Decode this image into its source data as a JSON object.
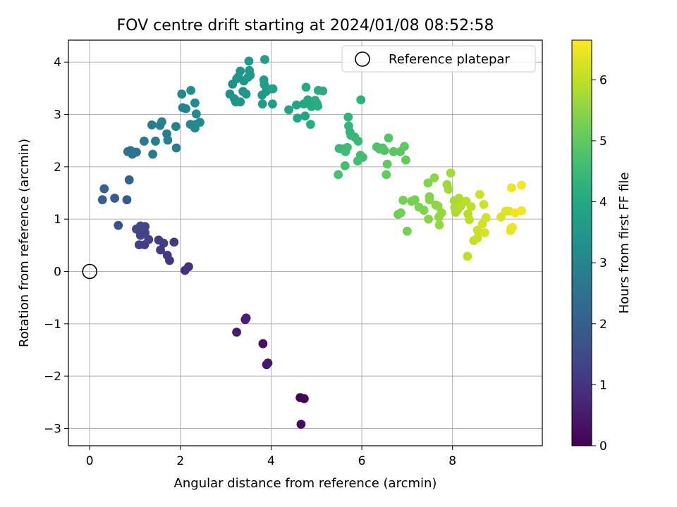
{
  "chart_data": {
    "type": "scatter",
    "title": "FOV centre drift starting at 2024/01/08 08:52:58",
    "xlabel": "Angular distance from reference (arcmin)",
    "ylabel": "Rotation from reference (arcmin)",
    "xlim": [
      -0.47,
      9.98
    ],
    "ylim": [
      -3.33,
      4.42
    ],
    "x_ticks": [
      0,
      2,
      4,
      6,
      8
    ],
    "y_ticks": [
      -3,
      -2,
      -1,
      0,
      1,
      2,
      3,
      4
    ],
    "x_tick_labels": [
      "0",
      "2",
      "4",
      "6",
      "8"
    ],
    "y_tick_labels": [
      "−3",
      "−2",
      "−1",
      "0",
      "1",
      "2",
      "3",
      "4"
    ],
    "grid": true,
    "legend": {
      "placement": "upper-right",
      "label": "Reference platepar"
    },
    "reference_point": {
      "x": 0,
      "y": 0
    },
    "colorbar": {
      "label": "Hours from first FF file",
      "range": [
        0,
        6.65
      ],
      "ticks": [
        0,
        1,
        2,
        3,
        4,
        5,
        6
      ],
      "tick_labels": [
        "0",
        "1",
        "2",
        "3",
        "4",
        "5",
        "6"
      ],
      "colormap": "viridis"
    },
    "points": [
      [
        4.64,
        -2.41,
        0.05
      ],
      [
        4.73,
        -2.43,
        0.1
      ],
      [
        4.66,
        -2.92,
        0.15
      ],
      [
        3.82,
        -1.38,
        0.3
      ],
      [
        3.9,
        -1.78,
        0.4
      ],
      [
        3.93,
        -1.75,
        0.45
      ],
      [
        3.24,
        -1.16,
        0.5
      ],
      [
        3.43,
        -0.92,
        0.55
      ],
      [
        3.45,
        -0.89,
        0.6
      ],
      [
        2.1,
        0.02,
        0.9
      ],
      [
        2.18,
        0.09,
        0.95
      ],
      [
        1.76,
        0.21,
        1.05
      ],
      [
        1.71,
        0.31,
        1.1
      ],
      [
        1.56,
        0.41,
        1.15
      ],
      [
        1.86,
        0.56,
        1.15
      ],
      [
        1.63,
        0.54,
        1.2
      ],
      [
        1.52,
        0.6,
        1.2
      ],
      [
        1.21,
        0.51,
        1.25
      ],
      [
        1.09,
        0.51,
        1.25
      ],
      [
        1.3,
        0.61,
        1.3
      ],
      [
        1.12,
        0.69,
        1.3
      ],
      [
        1.22,
        0.74,
        1.35
      ],
      [
        1.13,
        0.81,
        1.35
      ],
      [
        1.03,
        0.81,
        1.4
      ],
      [
        1.22,
        0.86,
        1.4
      ],
      [
        1.12,
        0.87,
        1.45
      ],
      [
        0.63,
        0.88,
        1.7
      ],
      [
        0.82,
        1.37,
        1.9
      ],
      [
        0.55,
        1.4,
        1.95
      ],
      [
        0.28,
        1.37,
        2.0
      ],
      [
        0.32,
        1.58,
        2.05
      ],
      [
        0.87,
        1.75,
        2.1
      ],
      [
        0.84,
        2.29,
        2.5
      ],
      [
        0.9,
        2.31,
        2.55
      ],
      [
        0.94,
        2.24,
        2.55
      ],
      [
        1.03,
        2.28,
        2.6
      ],
      [
        1.2,
        2.49,
        2.65
      ],
      [
        1.39,
        2.24,
        2.7
      ],
      [
        1.45,
        2.49,
        2.75
      ],
      [
        1.91,
        2.36,
        2.75
      ],
      [
        1.72,
        2.51,
        2.8
      ],
      [
        1.7,
        2.63,
        2.8
      ],
      [
        1.37,
        2.8,
        2.85
      ],
      [
        1.55,
        2.79,
        2.85
      ],
      [
        1.59,
        2.86,
        2.9
      ],
      [
        1.9,
        2.77,
        2.9
      ],
      [
        2.05,
        3.13,
        3.0
      ],
      [
        2.12,
        3.11,
        3.0
      ],
      [
        2.03,
        3.39,
        3.05
      ],
      [
        2.22,
        2.81,
        3.05
      ],
      [
        2.32,
        2.74,
        3.1
      ],
      [
        2.35,
        3.01,
        3.1
      ],
      [
        2.43,
        2.85,
        3.1
      ],
      [
        2.34,
        2.81,
        3.15
      ],
      [
        2.32,
        3.22,
        3.15
      ],
      [
        2.23,
        3.46,
        3.2
      ],
      [
        3.09,
        3.39,
        3.3
      ],
      [
        3.15,
        3.58,
        3.3
      ],
      [
        3.19,
        3.3,
        3.35
      ],
      [
        3.22,
        3.24,
        3.35
      ],
      [
        3.24,
        3.68,
        3.35
      ],
      [
        3.28,
        3.72,
        3.4
      ],
      [
        3.32,
        3.24,
        3.4
      ],
      [
        3.38,
        3.44,
        3.4
      ],
      [
        3.32,
        3.83,
        3.45
      ],
      [
        3.4,
        3.64,
        3.45
      ],
      [
        3.45,
        3.39,
        3.5
      ],
      [
        3.49,
        3.71,
        3.5
      ],
      [
        3.54,
        3.75,
        3.5
      ],
      [
        3.52,
        3.84,
        3.55
      ],
      [
        3.51,
        4.02,
        3.55
      ],
      [
        3.8,
        3.37,
        3.6
      ],
      [
        3.85,
        3.57,
        3.6
      ],
      [
        3.89,
        3.44,
        3.6
      ],
      [
        3.84,
        3.66,
        3.65
      ],
      [
        3.81,
        3.2,
        3.65
      ],
      [
        3.86,
        4.05,
        3.7
      ],
      [
        4.01,
        3.49,
        3.7
      ],
      [
        4.04,
        3.49,
        3.75
      ],
      [
        4.03,
        3.2,
        3.75
      ],
      [
        4.39,
        3.09,
        3.85
      ],
      [
        4.56,
        3.18,
        3.9
      ],
      [
        4.58,
        2.93,
        3.9
      ],
      [
        4.72,
        3.2,
        3.95
      ],
      [
        4.75,
        2.97,
        3.95
      ],
      [
        4.81,
        3.28,
        4.0
      ],
      [
        4.92,
        3.2,
        4.0
      ],
      [
        4.89,
        3.15,
        4.05
      ],
      [
        4.77,
        3.52,
        4.05
      ],
      [
        5.01,
        3.21,
        4.05
      ],
      [
        4.97,
        3.27,
        4.1
      ],
      [
        5.03,
        3.16,
        4.1
      ],
      [
        5.04,
        3.46,
        4.1
      ],
      [
        5.14,
        3.45,
        4.15
      ],
      [
        4.87,
        2.81,
        4.15
      ],
      [
        5.98,
        3.28,
        4.25
      ],
      [
        5.7,
        2.95,
        4.3
      ],
      [
        5.71,
        2.78,
        4.35
      ],
      [
        5.74,
        2.66,
        4.35
      ],
      [
        5.76,
        2.6,
        4.4
      ],
      [
        5.84,
        2.57,
        4.4
      ],
      [
        5.92,
        2.49,
        4.45
      ],
      [
        5.5,
        2.35,
        4.45
      ],
      [
        5.57,
        2.34,
        4.5
      ],
      [
        5.65,
        2.35,
        4.5
      ],
      [
        5.68,
        2.37,
        4.55
      ],
      [
        5.64,
        2.29,
        4.55
      ],
      [
        5.97,
        2.22,
        4.6
      ],
      [
        6.02,
        2.18,
        4.6
      ],
      [
        5.91,
        2.11,
        4.65
      ],
      [
        5.63,
        2.02,
        4.65
      ],
      [
        5.48,
        1.85,
        4.7
      ],
      [
        6.33,
        2.38,
        4.75
      ],
      [
        6.39,
        2.34,
        4.8
      ],
      [
        6.46,
        2.36,
        4.8
      ],
      [
        6.5,
        2.31,
        4.85
      ],
      [
        6.59,
        2.55,
        4.85
      ],
      [
        6.7,
        2.29,
        4.9
      ],
      [
        6.85,
        2.29,
        4.95
      ],
      [
        6.94,
        2.39,
        5.0
      ],
      [
        6.56,
        2.05,
        5.0
      ],
      [
        6.54,
        1.85,
        5.05
      ],
      [
        6.97,
        2.13,
        5.05
      ],
      [
        6.8,
        1.09,
        5.2
      ],
      [
        6.86,
        1.12,
        5.2
      ],
      [
        6.91,
        1.36,
        5.25
      ],
      [
        7.0,
        0.77,
        5.25
      ],
      [
        7.1,
        1.34,
        5.3
      ],
      [
        7.17,
        1.37,
        5.3
      ],
      [
        7.26,
        1.23,
        5.35
      ],
      [
        7.37,
        1.17,
        5.35
      ],
      [
        7.46,
        1.69,
        5.4
      ],
      [
        7.49,
        1.43,
        5.4
      ],
      [
        7.49,
        1.37,
        5.45
      ],
      [
        7.47,
        1.0,
        5.45
      ],
      [
        7.6,
        1.79,
        5.5
      ],
      [
        7.63,
        1.27,
        5.5
      ],
      [
        7.68,
        1.25,
        5.55
      ],
      [
        7.7,
        1.04,
        5.55
      ],
      [
        7.71,
        0.89,
        5.6
      ],
      [
        7.76,
        1.12,
        5.6
      ],
      [
        7.88,
        1.66,
        5.65
      ],
      [
        7.91,
        1.57,
        5.7
      ],
      [
        7.96,
        1.88,
        5.7
      ],
      [
        8.04,
        1.35,
        5.75
      ],
      [
        8.05,
        1.22,
        5.8
      ],
      [
        8.07,
        1.13,
        5.8
      ],
      [
        8.11,
        1.18,
        5.85
      ],
      [
        8.14,
        1.4,
        5.85
      ],
      [
        8.18,
        1.25,
        5.9
      ],
      [
        8.21,
        1.31,
        5.9
      ],
      [
        8.3,
        1.34,
        5.95
      ],
      [
        8.34,
        1.1,
        5.95
      ],
      [
        8.37,
        0.99,
        6.0
      ],
      [
        8.41,
        1.24,
        6.0
      ],
      [
        8.33,
        0.29,
        6.05
      ],
      [
        8.47,
        0.59,
        6.05
      ],
      [
        8.55,
        0.79,
        6.1
      ],
      [
        8.55,
        0.64,
        6.1
      ],
      [
        8.6,
        1.47,
        6.15
      ],
      [
        8.69,
        1.28,
        6.15
      ],
      [
        8.74,
        1.03,
        6.2
      ],
      [
        8.66,
        0.91,
        6.2
      ],
      [
        8.71,
        0.74,
        6.25
      ],
      [
        9.07,
        1.04,
        6.3
      ],
      [
        9.17,
        1.15,
        6.35
      ],
      [
        9.25,
        1.15,
        6.35
      ],
      [
        9.28,
        0.78,
        6.4
      ],
      [
        9.29,
        0.82,
        6.4
      ],
      [
        9.32,
        0.84,
        6.45
      ],
      [
        9.38,
        1.12,
        6.5
      ],
      [
        9.3,
        1.6,
        6.5
      ],
      [
        9.52,
        1.16,
        6.55
      ],
      [
        9.52,
        1.65,
        6.6
      ]
    ]
  }
}
